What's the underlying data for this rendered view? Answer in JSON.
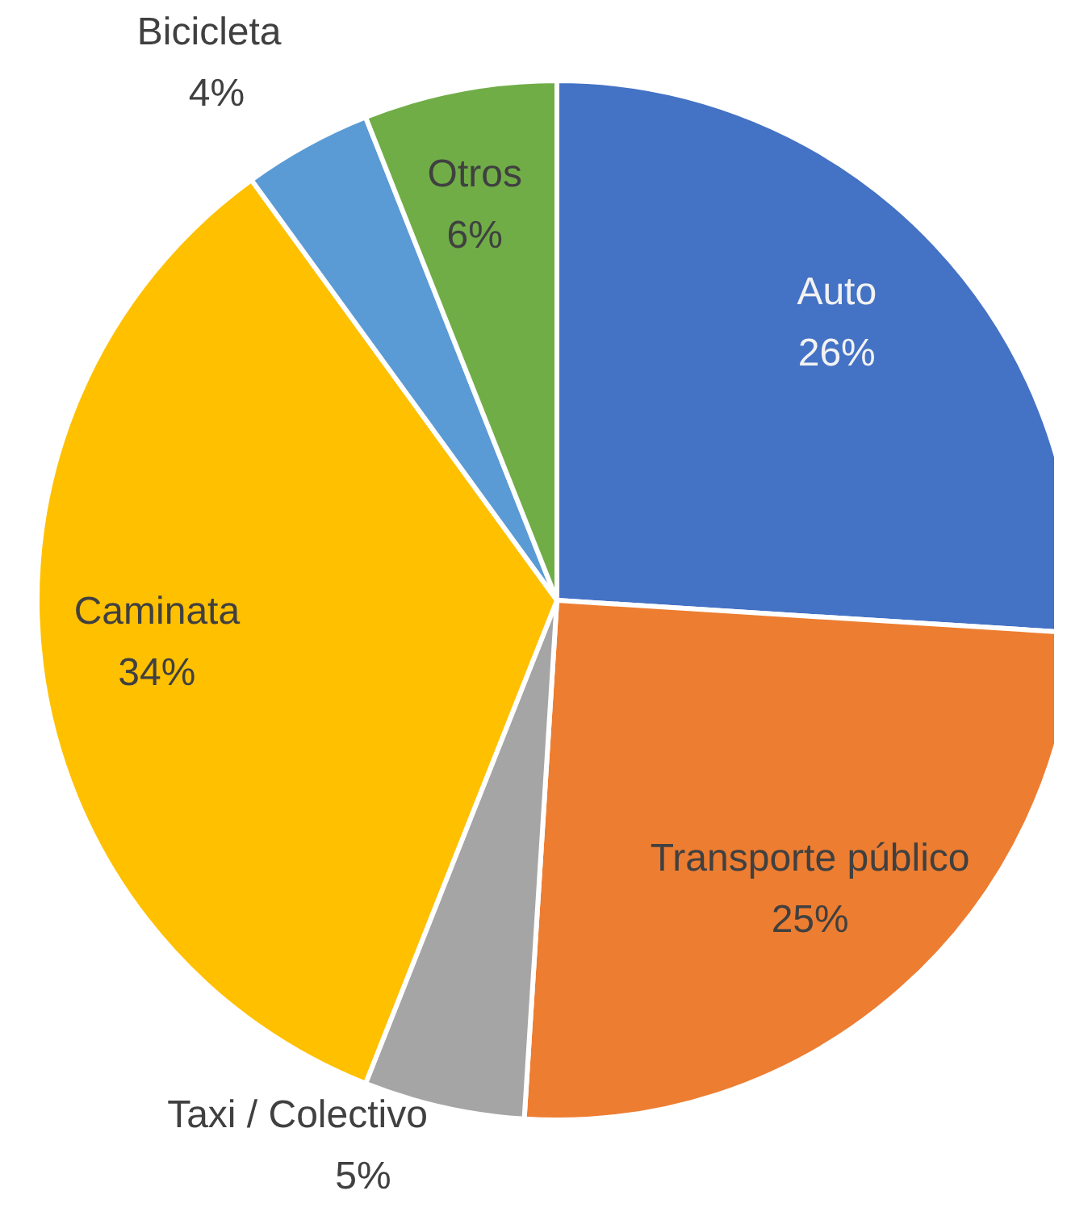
{
  "chart_data": {
    "type": "pie",
    "categories": [
      "Auto",
      "Transporte público",
      "Taxi / Colectivo",
      "Caminata",
      "Bicicleta",
      "Otros"
    ],
    "values": [
      26,
      25,
      5,
      34,
      4,
      6
    ],
    "value_labels": [
      "26%",
      "25%",
      "5%",
      "34%",
      "4%",
      "6%"
    ],
    "colors": [
      "#4472c4",
      "#ed7d31",
      "#a5a5a5",
      "#ffc000",
      "#5b9bd5",
      "#70ad47"
    ],
    "legend": false
  }
}
